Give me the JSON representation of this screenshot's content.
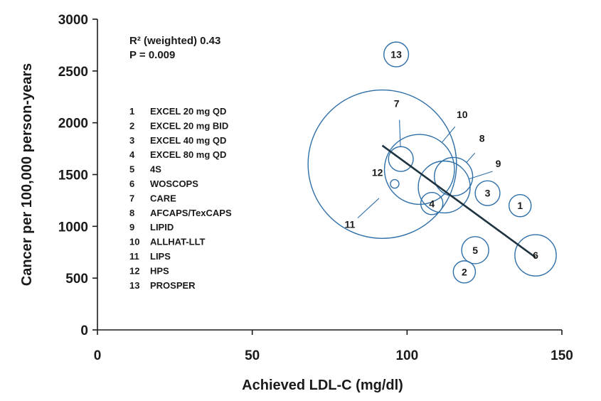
{
  "chart_data": {
    "type": "scatter",
    "title": "",
    "xlabel": "Achieved LDL-C (mg/dl)",
    "ylabel": "Cancer per 100,000 person-years",
    "xlim": [
      0,
      150
    ],
    "ylim": [
      0,
      3000
    ],
    "x_ticks": [
      "0",
      "50",
      "100",
      "150"
    ],
    "y_ticks": [
      "0",
      "500",
      "1000",
      "1500",
      "2000",
      "2500",
      "3000"
    ],
    "grid": false,
    "marker_color": "#2f6fa8",
    "trend_color": "#1e3340",
    "stats": [
      "R² (weighted) 0.43",
      "P = 0.009"
    ],
    "legend": [
      {
        "num": "1",
        "name": "EXCEL 20 mg QD"
      },
      {
        "num": "2",
        "name": "EXCEL 20 mg BID"
      },
      {
        "num": "3",
        "name": "EXCEL 40 mg QD"
      },
      {
        "num": "4",
        "name": "EXCEL 80 mg QD"
      },
      {
        "num": "5",
        "name": "4S"
      },
      {
        "num": "6",
        "name": "WOSCOPS"
      },
      {
        "num": "7",
        "name": "CARE"
      },
      {
        "num": "8",
        "name": "AFCAPS/TexCAPS"
      },
      {
        "num": "9",
        "name": "LIPID"
      },
      {
        "num": "10",
        "name": "ALLHAT-LLT"
      },
      {
        "num": "11",
        "name": "LIPS"
      },
      {
        "num": "12",
        "name": "HPS"
      },
      {
        "num": "13",
        "name": "PROSPER"
      }
    ],
    "points": [
      {
        "id": "1",
        "x": 136.5,
        "y": 1200,
        "weight": 2
      },
      {
        "id": "2",
        "x": 118.5,
        "y": 560,
        "weight": 2
      },
      {
        "id": "3",
        "x": 126,
        "y": 1320,
        "weight": 2.5
      },
      {
        "id": "4",
        "x": 108,
        "y": 1220,
        "weight": 2
      },
      {
        "id": "5",
        "x": 122,
        "y": 770,
        "weight": 3
      },
      {
        "id": "6",
        "x": 141.5,
        "y": 720,
        "weight": 7
      },
      {
        "id": "7",
        "x": 98,
        "y": 1650,
        "weight": 2.5
      },
      {
        "id": "8",
        "x": 115,
        "y": 1480,
        "weight": 6
      },
      {
        "id": "9",
        "x": 112,
        "y": 1380,
        "weight": 11
      },
      {
        "id": "10",
        "x": 104,
        "y": 1550,
        "weight": 20
      },
      {
        "id": "11",
        "x": 96,
        "y": 1410,
        "weight": 0.3
      },
      {
        "id": "12",
        "x": 92,
        "y": 1600,
        "weight": 90
      },
      {
        "id": "13",
        "x": 96.5,
        "y": 2660,
        "weight": 2.5
      }
    ],
    "trend_line": [
      {
        "x": 92,
        "y": 1780
      },
      {
        "x": 141.5,
        "y": 700
      }
    ]
  }
}
